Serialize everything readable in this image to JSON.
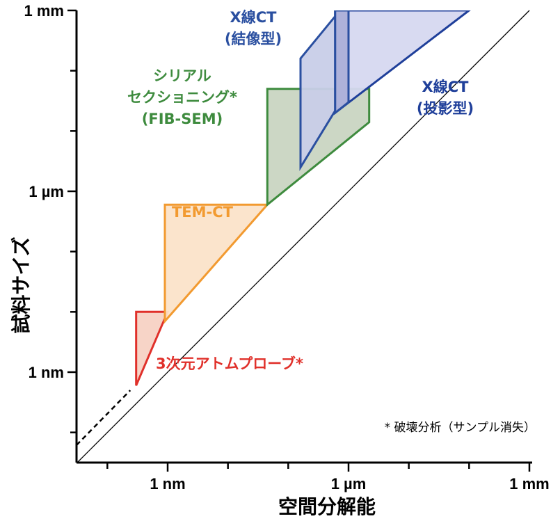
{
  "chart_data": {
    "type": "area",
    "log_scale": true,
    "x_axis": {
      "title": "空間分解能",
      "ticks": [
        {
          "value": 1e-09,
          "label": "1 nm"
        },
        {
          "value": 1e-06,
          "label": "1 µm"
        },
        {
          "value": 0.001,
          "label": "1 mm"
        }
      ]
    },
    "y_axis": {
      "title": "試料サイズ",
      "ticks": [
        {
          "value": 1e-09,
          "label": "1 nm"
        },
        {
          "value": 1e-06,
          "label": "1 µm"
        },
        {
          "value": 0.001,
          "label": "1 mm"
        }
      ]
    },
    "xlim": [
      1e-10,
      0.003
    ],
    "ylim": [
      3e-11,
      0.001
    ],
    "diagonal": "y = x",
    "regions": [
      {
        "label": [
          "3次元アトムプローブ*"
        ],
        "stroke": "#e0302a",
        "fill": "#f7d2c4",
        "polygon": [
          [
            3e-10,
            6e-10
          ],
          [
            3e-10,
            1e-08
          ],
          [
            1e-09,
            1e-08
          ]
        ]
      },
      {
        "label": [
          "TEM-CT"
        ],
        "stroke": "#f29a30",
        "fill": "#fbe3c9",
        "polygon": [
          [
            9e-10,
            7e-09
          ],
          [
            9e-10,
            6e-07
          ],
          [
            4.5e-08,
            6e-07
          ]
        ]
      },
      {
        "label": [
          "シリアル",
          "セクショニング*",
          "(FIB-SEM)"
        ],
        "stroke": "#3e8b3e",
        "fill": "#c9d5c2",
        "polygon": [
          [
            4.5e-08,
            6e-07
          ],
          [
            4.5e-08,
            5e-05
          ],
          [
            2.2e-06,
            5e-05
          ],
          [
            2.2e-06,
            1.4e-05
          ]
        ]
      },
      {
        "label": [
          "X線CT",
          "(結像型)"
        ],
        "stroke": "#2a4fa0",
        "fill": "#c8cde8",
        "polygon": [
          [
            1.6e-07,
            2.5e-06
          ],
          [
            1.6e-07,
            0.00016
          ],
          [
            6e-07,
            0.0008
          ],
          [
            6e-07,
            0.001
          ],
          [
            1e-06,
            0.001
          ],
          [
            1e-06,
            5e-05
          ]
        ]
      },
      {
        "label": [
          "X線CT",
          "(投影型)"
        ],
        "stroke": "#1f3f9a",
        "fill": "#d6d8f0",
        "polygon": [
          [
            6e-07,
            2e-05
          ],
          [
            6e-07,
            0.001
          ],
          [
            0.0001,
            0.001
          ]
        ]
      }
    ],
    "overlap_fill": "#aeb2da",
    "dashed_extension": [
      [
        1e-10,
        2e-10
      ],
      [
        2.4e-10,
        5e-10
      ]
    ],
    "note": "* 破壊分析（サンプル消失）"
  }
}
